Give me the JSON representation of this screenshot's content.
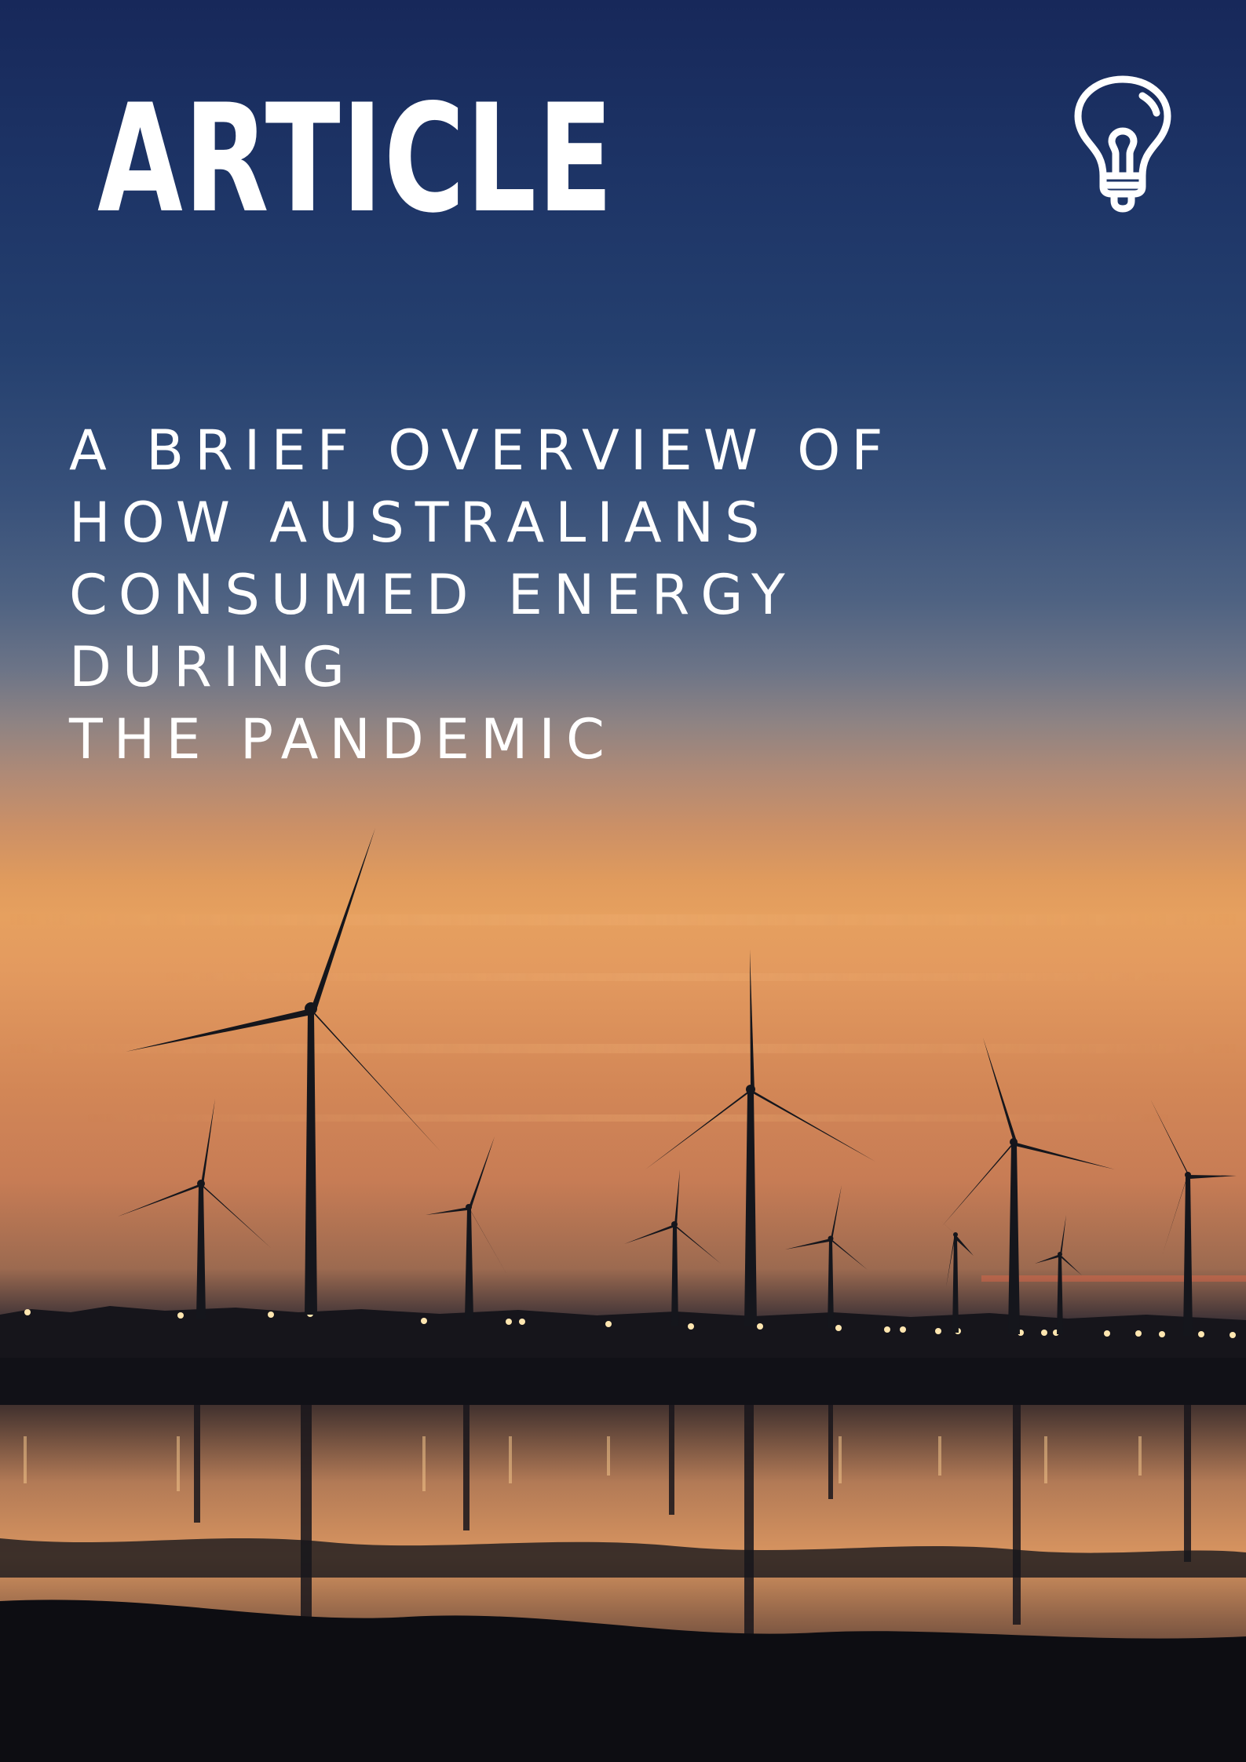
{
  "header": {
    "title": "ARTICLE",
    "icon": "lightbulb-icon"
  },
  "headline": {
    "lines": [
      "A BRIEF OVERVIEW OF",
      "HOW AUSTRALIANS",
      "CONSUMED ENERGY",
      "DURING",
      "THE PANDEMIC"
    ]
  },
  "background": {
    "subject": "wind-turbines-at-sunset",
    "colors": {
      "sky_top": "#17285a",
      "sky_mid": "#4e6282",
      "horizon": "#e39a5f",
      "silhouette": "#15161c",
      "water_glow": "#e2a063"
    }
  }
}
